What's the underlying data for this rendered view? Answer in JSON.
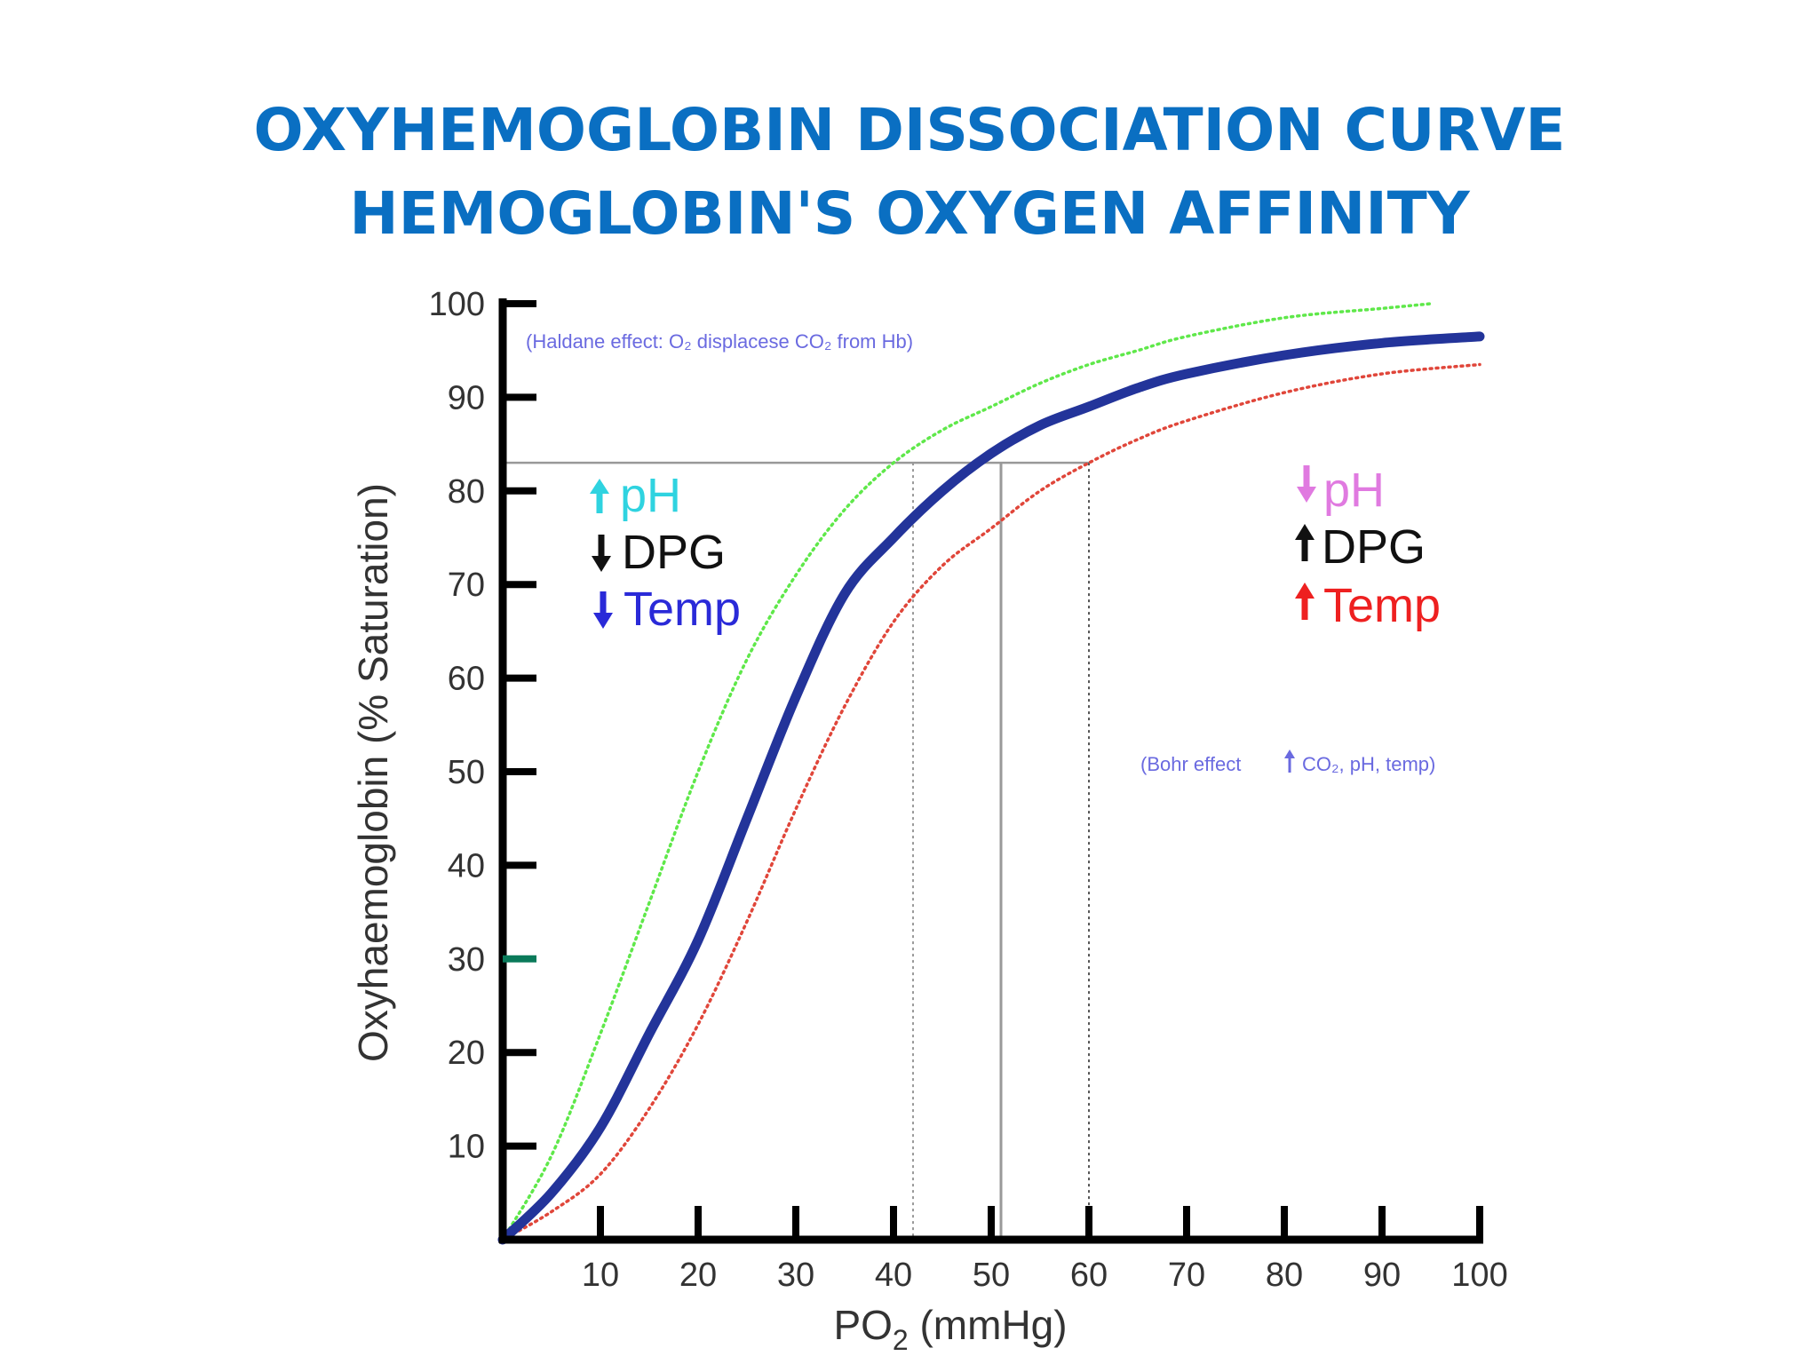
{
  "slide": {
    "title_line1": "OXYHEMOGLOBIN DISSOCIATION CURVE",
    "title_line2": "HEMOGLOBIN'S OXYGEN AFFINITY"
  },
  "colors": {
    "title": "#0a6fc2",
    "normal_curve": "#23349a",
    "left_curve": "#5fe84a",
    "right_curve": "#e0463a",
    "axis": "#000000",
    "guide_lines": "#999999",
    "ph_up": "#2fd3e0",
    "dpg_black": "#111111",
    "temp_down": "#2a2ad8",
    "ph_down": "#e07ae0",
    "temp_up": "#ee2020",
    "note": "#6a6ae0",
    "tick30": "#0a7a5a"
  },
  "chart_data": {
    "type": "line",
    "xlabel": "PO2 (mmHg)",
    "xlabel_main": "PO",
    "xlabel_sub": "2",
    "xlabel_rest": " (mmHg)",
    "ylabel": "Oxyhaemoglobin (% Saturation)",
    "xlim": [
      0,
      100
    ],
    "ylim": [
      0,
      100
    ],
    "x_ticks": [
      10,
      20,
      30,
      40,
      50,
      60,
      70,
      80,
      90,
      100
    ],
    "y_ticks": [
      10,
      20,
      30,
      40,
      50,
      60,
      70,
      80,
      90,
      100
    ],
    "series": [
      {
        "style": "solid-thick",
        "color": "#23349a",
        "x": [
          0,
          5,
          10,
          15,
          20,
          25,
          30,
          35,
          40,
          45,
          50,
          55,
          60,
          65,
          70,
          80,
          90,
          100
        ],
        "y": [
          0,
          5,
          12,
          22,
          32,
          45,
          58,
          69,
          75,
          80,
          84,
          87,
          89,
          91,
          92.5,
          94.5,
          95.8,
          96.5
        ]
      },
      {
        "style": "dotted",
        "color": "#5fe84a",
        "x": [
          0,
          5,
          10,
          15,
          20,
          25,
          30,
          35,
          40,
          45,
          50,
          55,
          60,
          65,
          70,
          80,
          90,
          95
        ],
        "y": [
          0,
          9,
          22,
          36,
          50,
          62,
          71,
          78,
          83,
          86.5,
          89,
          91.5,
          93.5,
          95,
          96.5,
          98.5,
          99.5,
          100
        ]
      },
      {
        "style": "dotted",
        "color": "#e0463a",
        "x": [
          0,
          5,
          10,
          15,
          20,
          25,
          30,
          35,
          40,
          45,
          50,
          55,
          60,
          65,
          70,
          80,
          90,
          100
        ],
        "y": [
          0,
          3,
          7,
          14,
          23,
          34,
          46,
          57,
          66,
          72,
          76,
          80,
          83,
          85.5,
          87.5,
          90.5,
          92.5,
          93.5
        ]
      }
    ],
    "guides": {
      "saturation_line_y": 83,
      "normal_x": 51,
      "left_x": 42,
      "right_x": 60
    },
    "left_annotation": {
      "ph": "pH",
      "dpg": "DPG",
      "temp": "Temp"
    },
    "right_annotation": {
      "ph": "pH",
      "dpg": "DPG",
      "temp": "Temp"
    },
    "haldane_note": "(Haldane effect: O₂ displacese CO₂ from Hb)",
    "bohr_note_pre": "(Bohr effect",
    "bohr_note_post": "CO₂, pH, temp)"
  }
}
